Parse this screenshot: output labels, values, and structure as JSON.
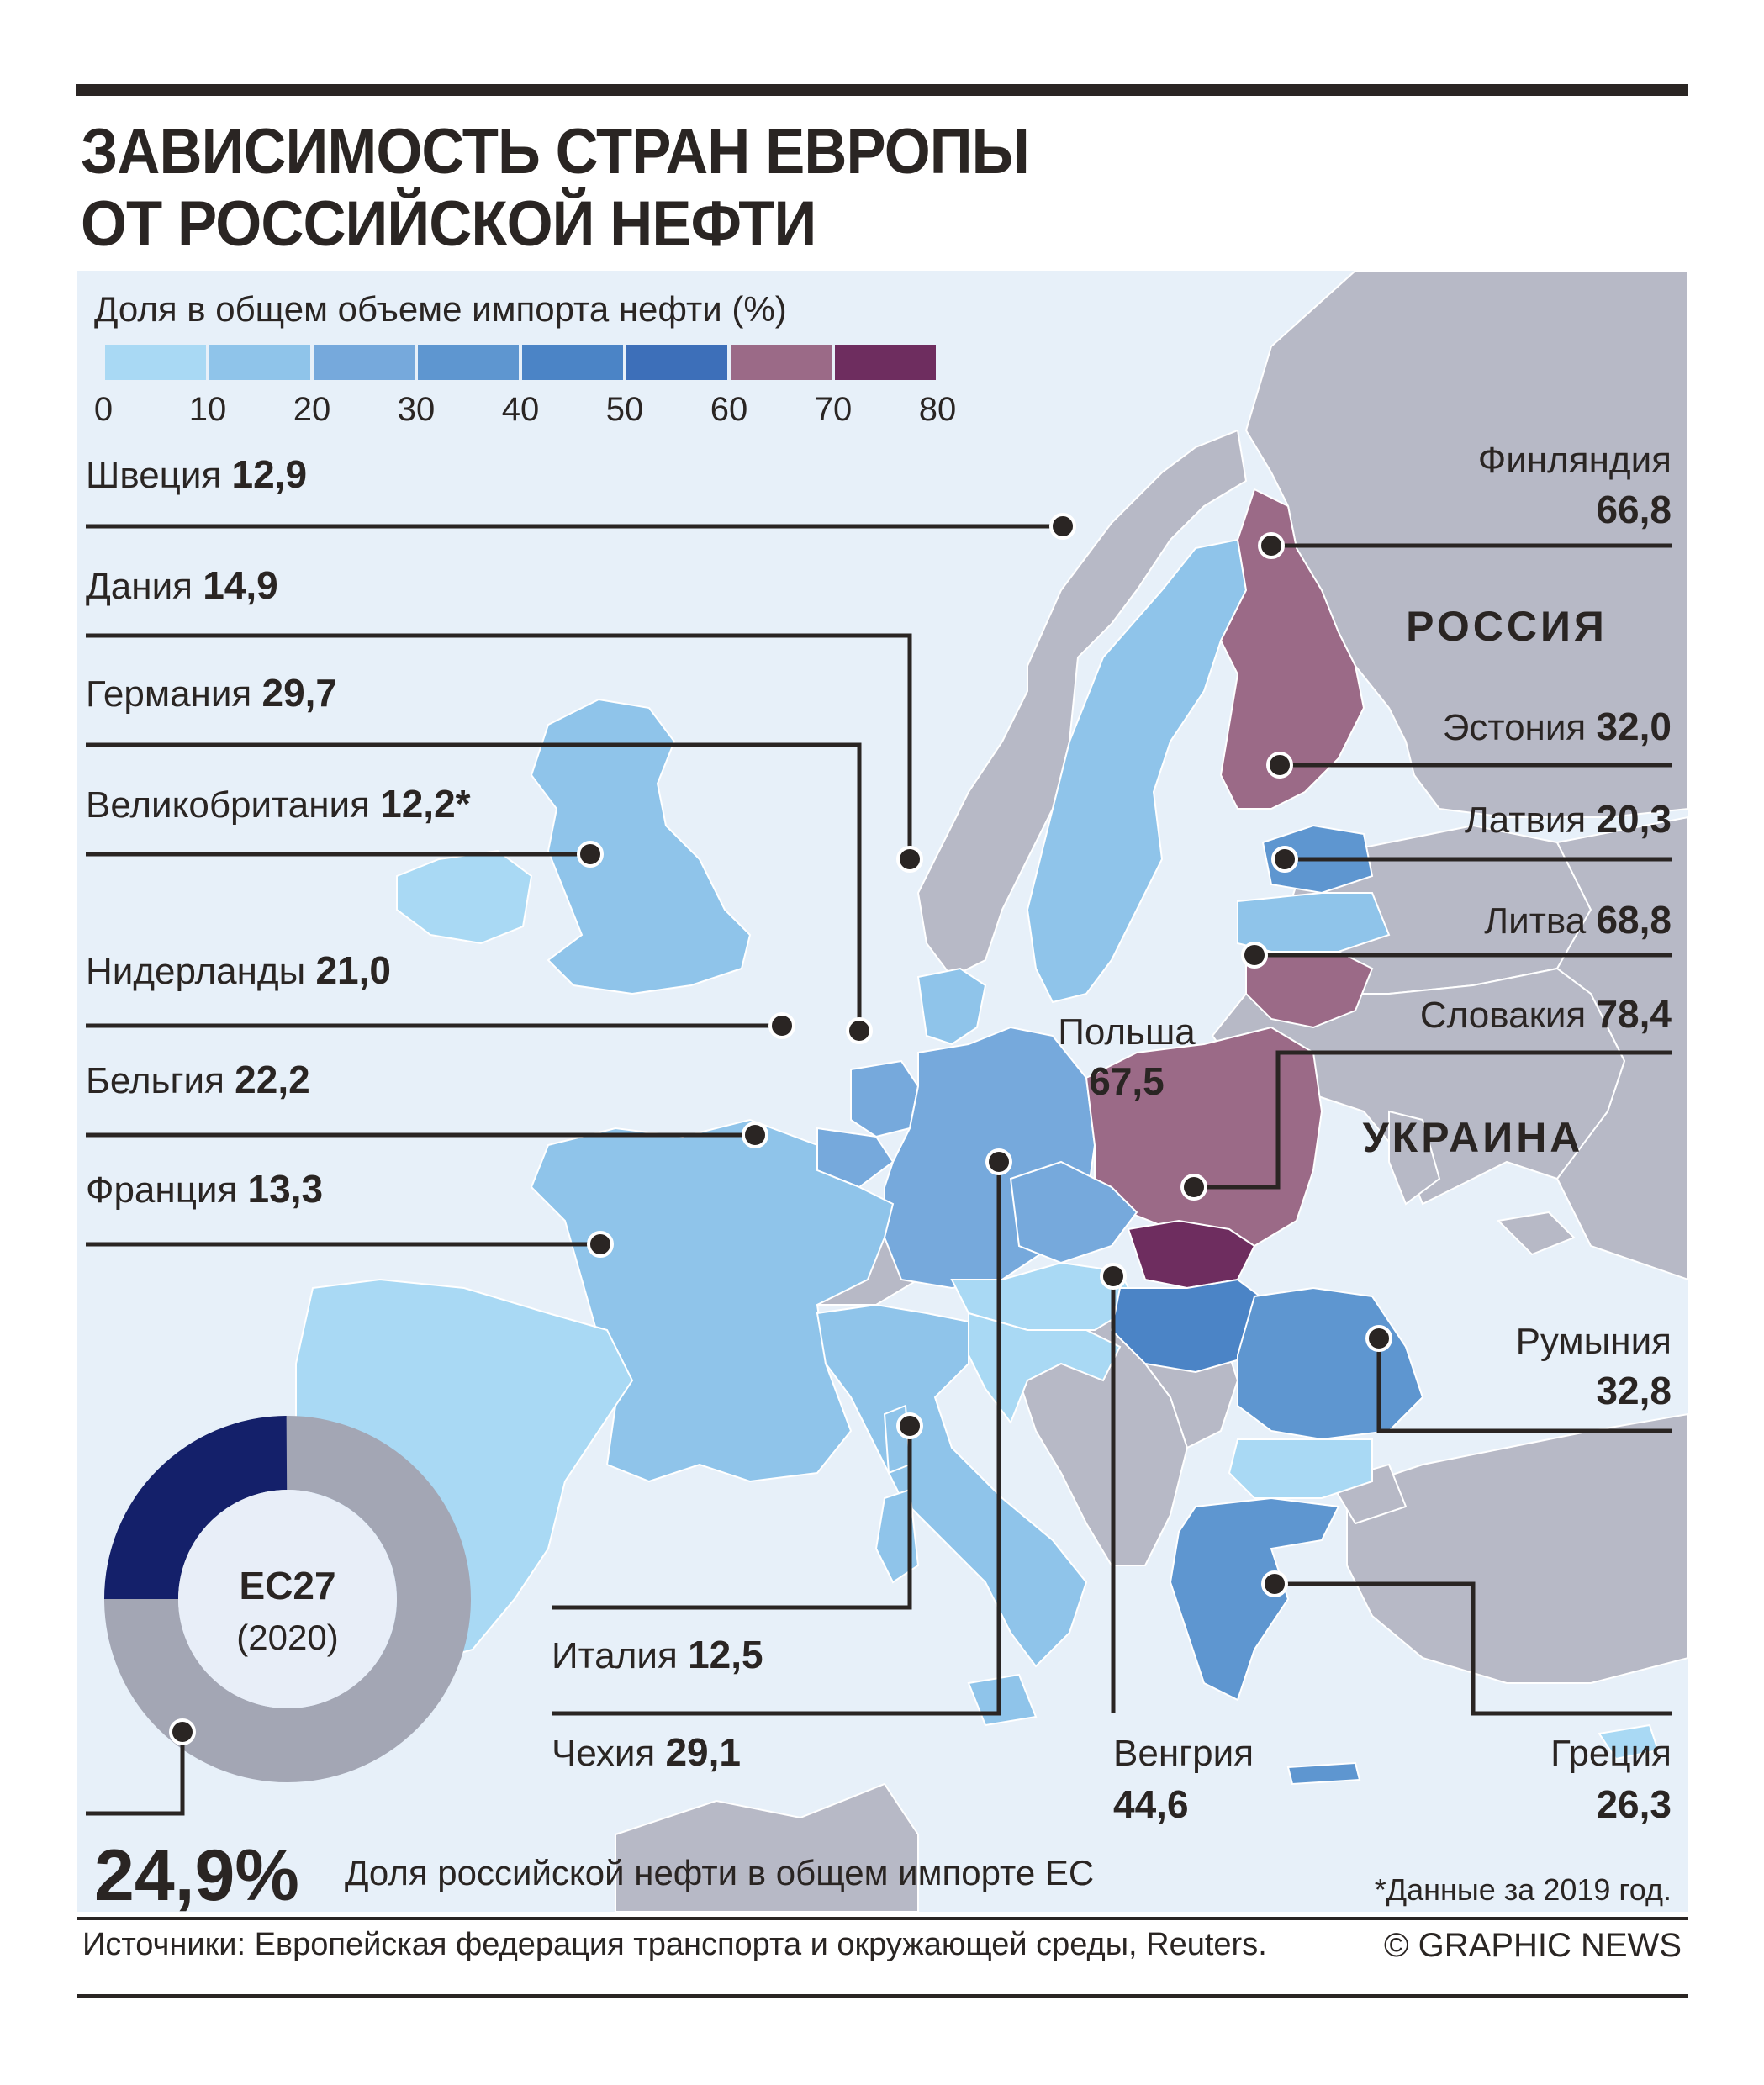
{
  "title_line1": "ЗАВИСИМОСТЬ СТРАН ЕВРОПЫ",
  "title_line2": "ОТ РОССИЙСКОЙ НЕФТИ",
  "legend": {
    "title": "Доля в общем объеме импорта нефти (%)",
    "ticks": [
      "0",
      "10",
      "20",
      "30",
      "40",
      "50",
      "60",
      "70",
      "80"
    ],
    "colors": [
      "#a9d9f4",
      "#8fc4ea",
      "#76a9dc",
      "#5e96d0",
      "#4b84c6",
      "#3d6fb9",
      "#9b6a87",
      "#6e2d5f"
    ]
  },
  "colors": {
    "sea": "#e7f0f9",
    "non_eu": "#b7b9c6",
    "leader": "#2a2523"
  },
  "countries": [
    {
      "id": "sweden",
      "name": "Швеция",
      "value": "12,9"
    },
    {
      "id": "denmark",
      "name": "Дания",
      "value": "14,9"
    },
    {
      "id": "germany",
      "name": "Германия",
      "value": "29,7"
    },
    {
      "id": "uk",
      "name": "Великобритания",
      "value": "12,2*"
    },
    {
      "id": "netherlands",
      "name": "Нидерланды",
      "value": "21,0"
    },
    {
      "id": "belgium",
      "name": "Бельгия",
      "value": "22,2"
    },
    {
      "id": "france",
      "name": "Франция",
      "value": "13,3"
    },
    {
      "id": "finland",
      "name": "Финляндия",
      "value": "66,8"
    },
    {
      "id": "estonia",
      "name": "Эстония",
      "value": "32,0"
    },
    {
      "id": "latvia",
      "name": "Латвия",
      "value": "20,3"
    },
    {
      "id": "lithuania",
      "name": "Литва",
      "value": "68,8"
    },
    {
      "id": "slovakia",
      "name": "Словакия",
      "value": "78,4"
    },
    {
      "id": "poland",
      "name": "Польша",
      "value": "67,5"
    },
    {
      "id": "romania",
      "name": "Румыния",
      "value": "32,8"
    },
    {
      "id": "italy",
      "name": "Италия",
      "value": "12,5"
    },
    {
      "id": "czechia",
      "name": "Чехия",
      "value": "29,1"
    },
    {
      "id": "hungary",
      "name": "Венгрия",
      "value": "44,6"
    },
    {
      "id": "greece",
      "name": "Греция",
      "value": "26,3"
    }
  ],
  "region_labels": {
    "russia": "РОССИЯ",
    "ukraine": "УКРАИНА"
  },
  "eu": {
    "label": "ЕС27",
    "year": "(2020)",
    "share_value": 24.9,
    "share_text": "24,9%",
    "share_caption": "Доля российской нефти в общем импорте ЕС",
    "ring_colors": [
      "#14206a",
      "#a3a6b4"
    ]
  },
  "footnote": "*Данные за 2019 год.",
  "source": "Источники: Европейская федерация транспорта и окружающей среды, Reuters.",
  "credit": "© GRAPHIC NEWS"
}
